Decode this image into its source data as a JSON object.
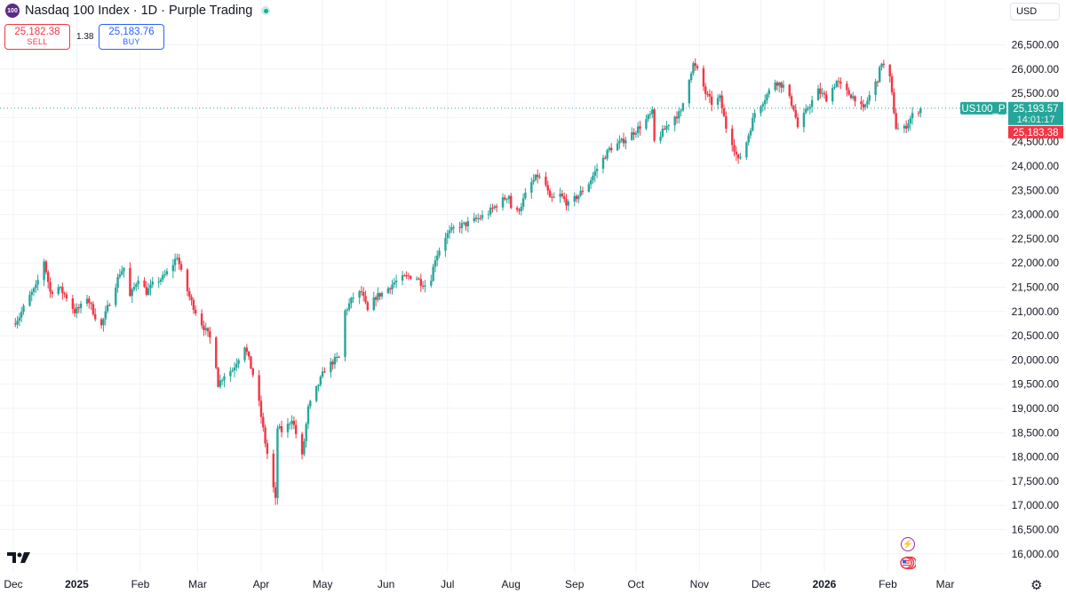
{
  "header": {
    "logo_text": "100",
    "title": "Nasdaq 100 Index · 1D · Purple Trading",
    "sell_price": "25,182.38",
    "sell_label": "SELL",
    "spread": "1.38",
    "buy_price": "25,183.76",
    "buy_label": "BUY",
    "currency": "USD"
  },
  "colors": {
    "up": "#26a69a",
    "down": "#f23645",
    "grid": "#f0f3fa"
  },
  "icons": [
    "tradingview-logo",
    "settings-gear-icon",
    "lightning-event-icon",
    "us-flag-event-icon"
  ],
  "chart_data": {
    "type": "candlestick",
    "symbol": "US100_P",
    "y_range": [
      15900,
      26700
    ],
    "y_ticks": [
      16000,
      16500,
      17000,
      17500,
      18000,
      18500,
      19000,
      19500,
      20000,
      20500,
      21000,
      21500,
      22000,
      22500,
      23000,
      23500,
      24000,
      24500,
      25000,
      25500,
      26000,
      26500
    ],
    "y_tick_labels": [
      "16,000.00",
      "16,500.00",
      "17,000.00",
      "17,500.00",
      "18,000.00",
      "18,500.00",
      "19,000.00",
      "19,500.00",
      "20,000.00",
      "20,500.00",
      "21,000.00",
      "21,500.00",
      "22,000.00",
      "22,500.00",
      "23,000.00",
      "23,500.00",
      "24,000.00",
      "24,500.00",
      "25,000.00",
      "25,500.00",
      "26,000.00",
      "26,500.00"
    ],
    "x_labels": [
      "Dec",
      "2025",
      "Feb",
      "Mar",
      "Apr",
      "May",
      "Jun",
      "Jul",
      "Aug",
      "Sep",
      "Oct",
      "Nov",
      "Dec",
      "2026",
      "Feb",
      "Mar"
    ],
    "x_label_dates": [
      "2024-12-01",
      "2025-01-01",
      "2025-02-01",
      "2025-03-01",
      "2025-04-01",
      "2025-05-01",
      "2025-06-01",
      "2025-07-01",
      "2025-08-01",
      "2025-09-01",
      "2025-10-01",
      "2025-11-01",
      "2025-12-01",
      "2026-01-01",
      "2026-02-01",
      "2026-03-01"
    ],
    "price_tags": {
      "symbol": "US100_P",
      "last": 25193.57,
      "last_label": "25,193.57",
      "countdown": "14:01:17",
      "bid": 25183.38,
      "bid_label": "25,183.38"
    },
    "anchors": [
      [
        "2024-12-01",
        20750
      ],
      [
        "2024-12-04",
        20900
      ],
      [
        "2024-12-08",
        21250
      ],
      [
        "2024-12-12",
        21500
      ],
      [
        "2024-12-16",
        22050
      ],
      [
        "2024-12-19",
        21400
      ],
      [
        "2024-12-23",
        21500
      ],
      [
        "2024-12-27",
        21300
      ],
      [
        "2024-12-31",
        21000
      ],
      [
        "2025-01-03",
        21100
      ],
      [
        "2025-01-06",
        21300
      ],
      [
        "2025-01-10",
        20900
      ],
      [
        "2025-01-13",
        20700
      ],
      [
        "2025-01-17",
        21200
      ],
      [
        "2025-01-22",
        21800
      ],
      [
        "2025-01-24",
        21900
      ],
      [
        "2025-01-27",
        21300
      ],
      [
        "2025-01-31",
        21700
      ],
      [
        "2025-02-04",
        21400
      ],
      [
        "2025-02-08",
        21600
      ],
      [
        "2025-02-12",
        21700
      ],
      [
        "2025-02-16",
        21900
      ],
      [
        "2025-02-19",
        22150
      ],
      [
        "2025-02-21",
        21800
      ],
      [
        "2025-02-25",
        21300
      ],
      [
        "2025-03-01",
        20900
      ],
      [
        "2025-03-05",
        20600
      ],
      [
        "2025-03-09",
        20300
      ],
      [
        "2025-03-11",
        19500
      ],
      [
        "2025-03-14",
        19700
      ],
      [
        "2025-03-18",
        19800
      ],
      [
        "2025-03-24",
        20300
      ],
      [
        "2025-03-28",
        19700
      ],
      [
        "2025-03-31",
        19100
      ],
      [
        "2025-04-03",
        18300
      ],
      [
        "2025-04-06",
        17600
      ],
      [
        "2025-04-08",
        17100
      ],
      [
        "2025-04-09",
        18600
      ],
      [
        "2025-04-12",
        18500
      ],
      [
        "2025-04-16",
        18800
      ],
      [
        "2025-04-21",
        18000
      ],
      [
        "2025-04-24",
        19000
      ],
      [
        "2025-04-28",
        19400
      ],
      [
        "2025-05-02",
        19800
      ],
      [
        "2025-05-07",
        20000
      ],
      [
        "2025-05-11",
        20100
      ],
      [
        "2025-05-12",
        21000
      ],
      [
        "2025-05-16",
        21300
      ],
      [
        "2025-05-20",
        21400
      ],
      [
        "2025-05-23",
        21000
      ],
      [
        "2025-05-27",
        21300
      ],
      [
        "2025-05-31",
        21400
      ],
      [
        "2025-06-05",
        21600
      ],
      [
        "2025-06-10",
        21700
      ],
      [
        "2025-06-15",
        21750
      ],
      [
        "2025-06-18",
        21600
      ],
      [
        "2025-06-22",
        21500
      ],
      [
        "2025-06-25",
        22100
      ],
      [
        "2025-06-30",
        22550
      ],
      [
        "2025-07-05",
        22750
      ],
      [
        "2025-07-10",
        22800
      ],
      [
        "2025-07-15",
        22900
      ],
      [
        "2025-07-20",
        23000
      ],
      [
        "2025-07-25",
        23200
      ],
      [
        "2025-07-31",
        23400
      ],
      [
        "2025-08-02",
        22900
      ],
      [
        "2025-08-06",
        23200
      ],
      [
        "2025-08-10",
        23600
      ],
      [
        "2025-08-14",
        23800
      ],
      [
        "2025-08-18",
        23600
      ],
      [
        "2025-08-20",
        23300
      ],
      [
        "2025-08-25",
        23400
      ],
      [
        "2025-08-29",
        23200
      ],
      [
        "2025-09-03",
        23400
      ],
      [
        "2025-09-08",
        23650
      ],
      [
        "2025-09-12",
        23950
      ],
      [
        "2025-09-18",
        24350
      ],
      [
        "2025-09-24",
        24500
      ],
      [
        "2025-09-30",
        24700
      ],
      [
        "2025-10-05",
        24900
      ],
      [
        "2025-10-09",
        25100
      ],
      [
        "2025-10-10",
        24500
      ],
      [
        "2025-10-14",
        24700
      ],
      [
        "2025-10-19",
        25000
      ],
      [
        "2025-10-23",
        25100
      ],
      [
        "2025-10-26",
        25700
      ],
      [
        "2025-10-29",
        26100
      ],
      [
        "2025-11-01",
        25900
      ],
      [
        "2025-11-04",
        25500
      ],
      [
        "2025-11-07",
        25300
      ],
      [
        "2025-11-11",
        25400
      ],
      [
        "2025-11-14",
        24800
      ],
      [
        "2025-11-17",
        24500
      ],
      [
        "2025-11-20",
        24100
      ],
      [
        "2025-11-24",
        24500
      ],
      [
        "2025-11-28",
        25100
      ],
      [
        "2025-12-03",
        25400
      ],
      [
        "2025-12-08",
        25750
      ],
      [
        "2025-12-12",
        25650
      ],
      [
        "2025-12-17",
        25200
      ],
      [
        "2025-12-19",
        24800
      ],
      [
        "2025-12-24",
        25200
      ],
      [
        "2025-12-29",
        25550
      ],
      [
        "2026-01-02",
        25400
      ],
      [
        "2026-01-07",
        25750
      ],
      [
        "2026-01-11",
        25550
      ],
      [
        "2026-01-16",
        25400
      ],
      [
        "2026-01-20",
        25150
      ],
      [
        "2026-01-23",
        25450
      ],
      [
        "2026-01-27",
        25800
      ],
      [
        "2026-01-29",
        26150
      ],
      [
        "2026-02-02",
        25800
      ],
      [
        "2026-02-05",
        24800
      ],
      [
        "2026-02-08",
        24700
      ],
      [
        "2026-02-13",
        25050
      ],
      [
        "2026-02-17",
        25193
      ]
    ]
  }
}
